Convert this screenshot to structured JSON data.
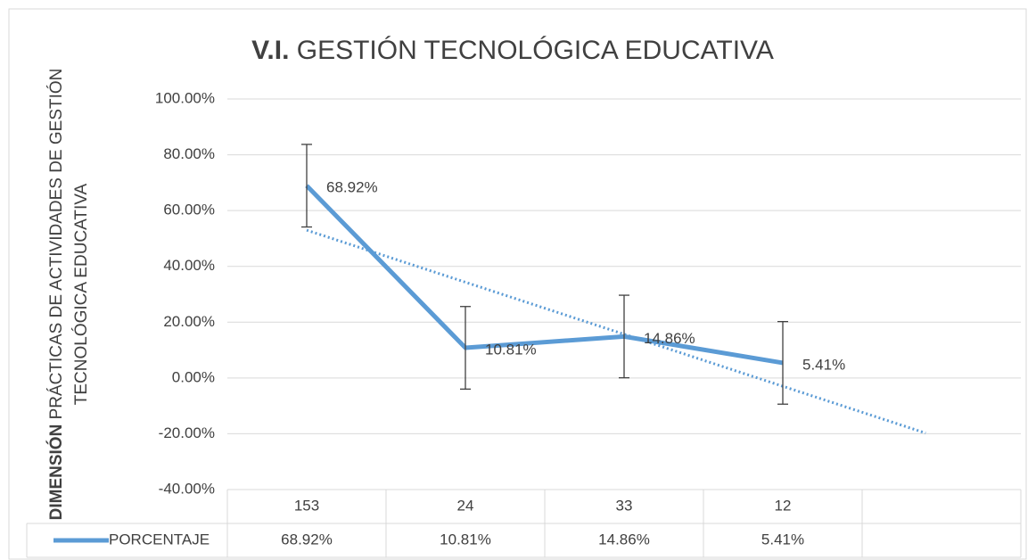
{
  "chart_data": {
    "type": "line",
    "title_bold": "V.I.",
    "title": "GESTIÓN TECNOLÓGICA EDUCATIVA",
    "ylabel_bold": "DIMENSIÓN",
    "ylabel_lines": [
      "PRÁCTICAS DE ACTIVIDADES DE GESTIÓN",
      "TECNOLÓGICA EDUCATIVA"
    ],
    "categories": [
      "153",
      "24",
      "33",
      "12",
      null
    ],
    "series": [
      {
        "name": "PORCENTAJE",
        "color": "#5b9bd5",
        "values": [
          68.92,
          10.81,
          14.86,
          5.41,
          null
        ],
        "value_labels": [
          "68.92%",
          "10.81%",
          "14.86%",
          "5.41%",
          null
        ],
        "errors": [
          14.8,
          14.8,
          14.8,
          14.8,
          null
        ]
      }
    ],
    "trendline": "linear",
    "data_table": true,
    "grid": true,
    "ylim": [
      -40,
      100
    ],
    "yticks": [
      {
        "value": -40,
        "label": "-40.00%"
      },
      {
        "value": -20,
        "label": "-20.00%"
      },
      {
        "value": 0,
        "label": "0.00%"
      },
      {
        "value": 20,
        "label": "20.00%"
      },
      {
        "value": 40,
        "label": "40.00%"
      },
      {
        "value": 60,
        "label": "60.00%"
      },
      {
        "value": 80,
        "label": "80.00%"
      },
      {
        "value": 100,
        "label": "100.00%"
      }
    ]
  }
}
